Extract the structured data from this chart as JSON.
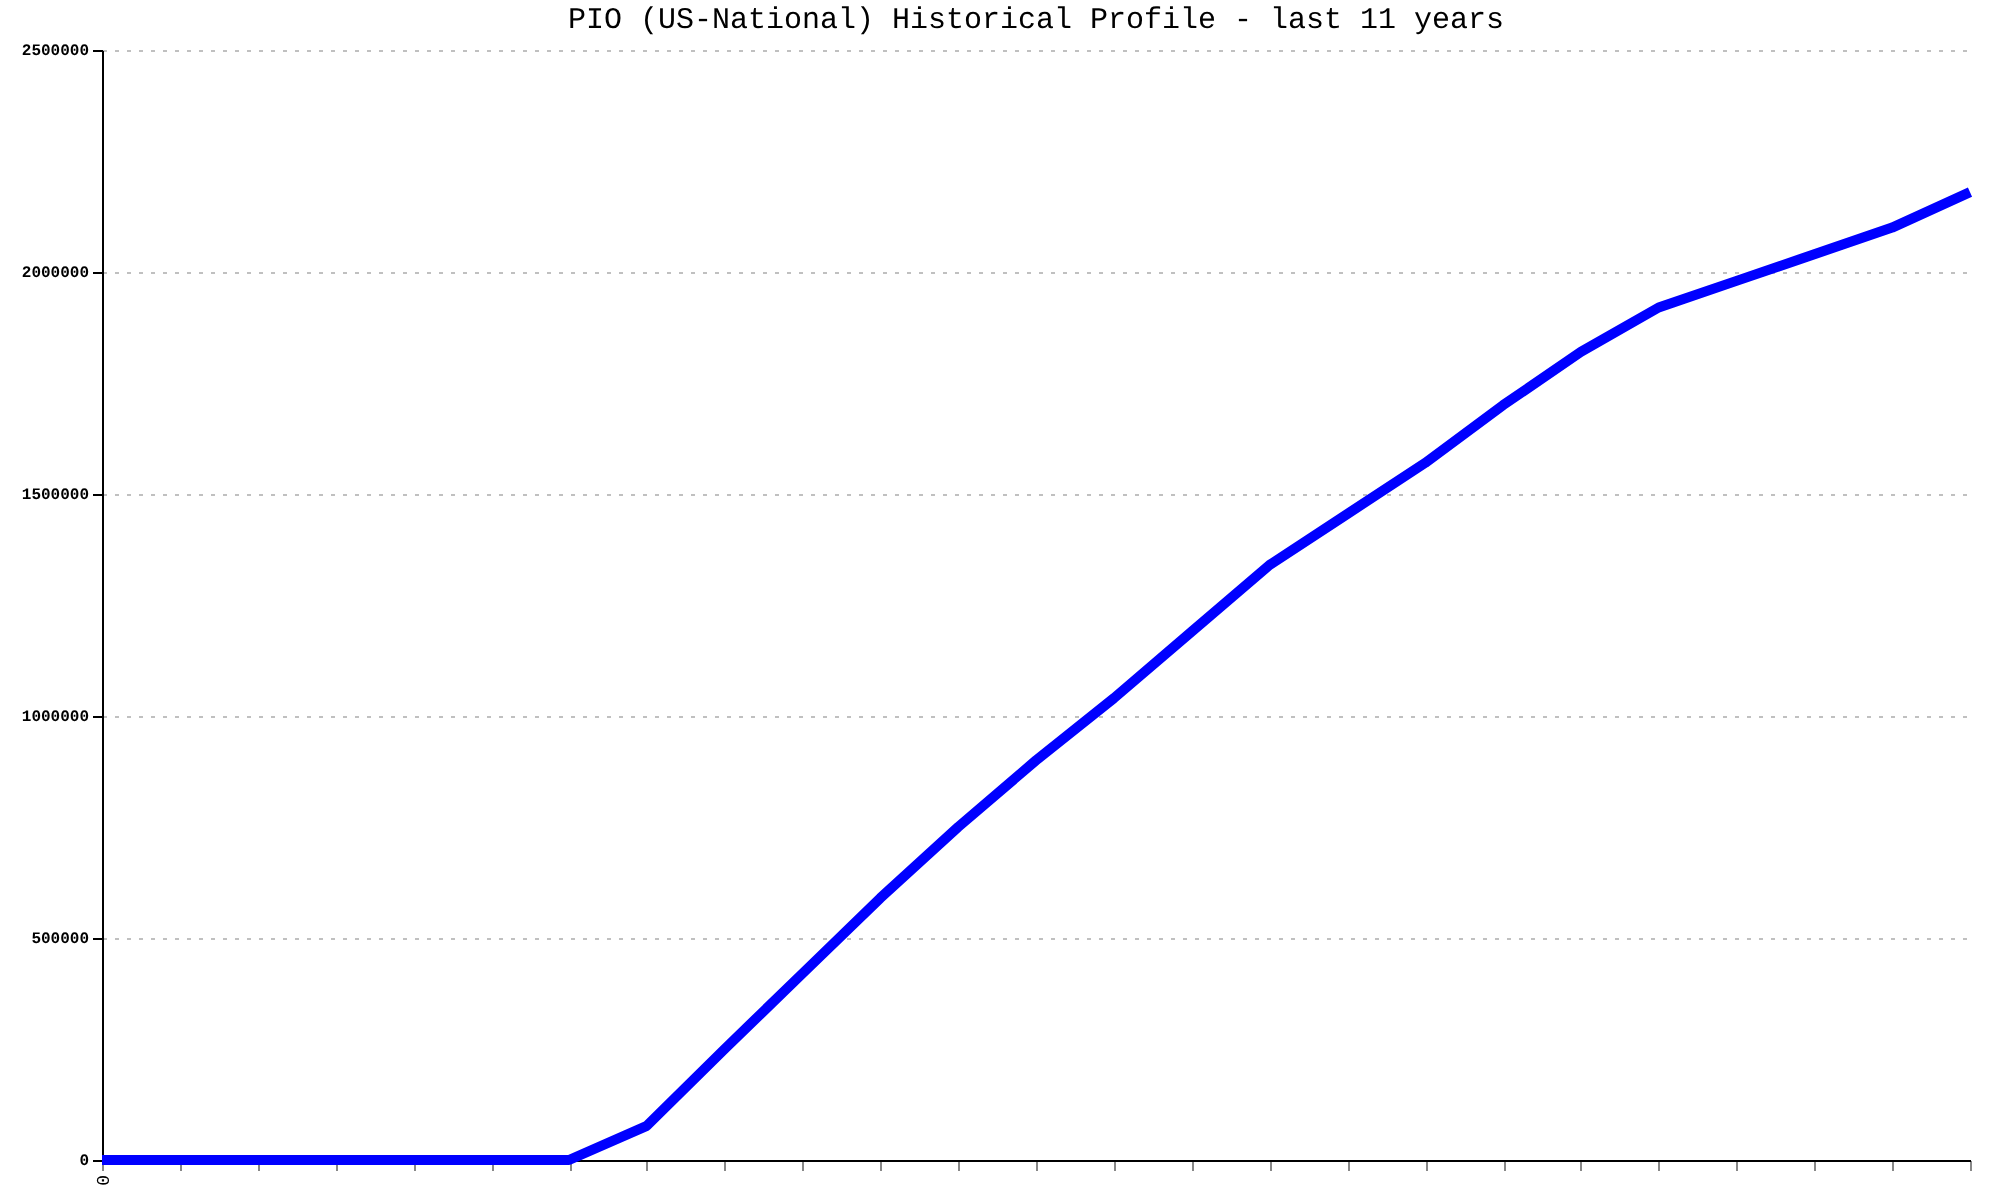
{
  "chart_data": {
    "type": "line",
    "title": "PIO (US-National) Historical Profile - last 11 years",
    "categories": [
      "0",
      null,
      null,
      null,
      null,
      null,
      null,
      null,
      null,
      null,
      null,
      null,
      null,
      null,
      null,
      null,
      null,
      null,
      null,
      null,
      null,
      null,
      null,
      null,
      null
    ],
    "series": [
      {
        "color": "#0000ff",
        "values": [
          0,
          0,
          0,
          0,
          0,
          0,
          0,
          77000,
          250000,
          420000,
          590000,
          750000,
          900000,
          1040000,
          1190000,
          1340000,
          1455000,
          1570000,
          1700000,
          1820000,
          1920000,
          1980000,
          2040000,
          2100000,
          2180000
        ]
      }
    ],
    "ylim": [
      0,
      2500000
    ],
    "yticks": [
      0,
      500000,
      1000000,
      1500000,
      2000000,
      2500000
    ],
    "grid": "y",
    "legend": false,
    "marker": "none",
    "line_style": "solid"
  }
}
